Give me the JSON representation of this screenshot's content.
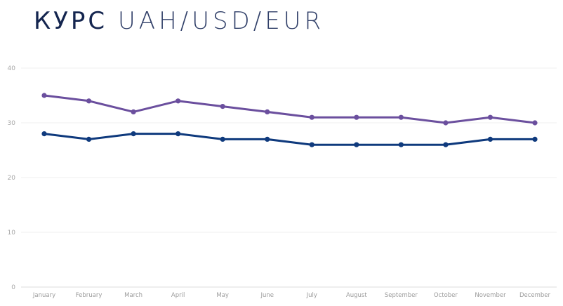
{
  "title": {
    "bold": "КУРС",
    "light": "UAH/USD/EUR"
  },
  "chart_data": {
    "type": "line",
    "categories": [
      "January",
      "February",
      "March",
      "April",
      "May",
      "June",
      "July",
      "August",
      "September",
      "October",
      "November",
      "December"
    ],
    "series": [
      {
        "color": "#6b4f9e",
        "values": [
          35,
          34,
          32,
          34,
          33,
          32,
          31,
          31,
          31,
          30,
          31,
          30
        ]
      },
      {
        "color": "#0f3a7d",
        "values": [
          28,
          27,
          28,
          28,
          27,
          27,
          26,
          26,
          26,
          26,
          27,
          27
        ]
      }
    ],
    "ylim": [
      0,
      40
    ],
    "yticks": [
      "0",
      "10",
      "20",
      "30",
      "40"
    ],
    "grid": true,
    "gridColor": "#efefef"
  }
}
